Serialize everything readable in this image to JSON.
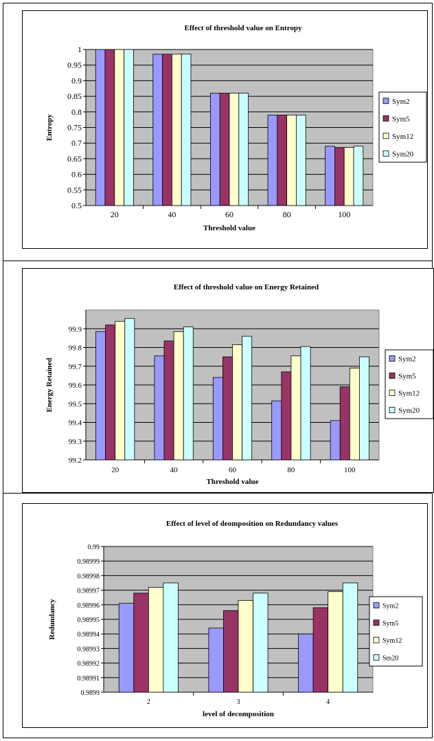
{
  "chart_data": [
    {
      "type": "bar",
      "title": "Effect of threshold value on Entropy",
      "xlabel": "Threshold value",
      "ylabel": "Entropy",
      "categories": [
        "20",
        "40",
        "60",
        "80",
        "100"
      ],
      "ylim": [
        0.5,
        1
      ],
      "yticks": [
        "0.5",
        "0.55",
        "0.6",
        "0.65",
        "0.7",
        "0.75",
        "0.8",
        "0.85",
        "0.9",
        "0.95",
        "1"
      ],
      "grid": true,
      "legend": "right",
      "series": [
        {
          "name": "Sym2",
          "color": "#9999ff",
          "values": [
            1,
            0.985,
            0.86,
            0.79,
            0.69
          ]
        },
        {
          "name": "Sym5",
          "color": "#993366",
          "values": [
            1,
            0.985,
            0.86,
            0.79,
            0.686
          ]
        },
        {
          "name": "Sym12",
          "color": "#ffffcc",
          "values": [
            1,
            0.985,
            0.86,
            0.79,
            0.686
          ]
        },
        {
          "name": "Sym20",
          "color": "#ccffff",
          "values": [
            1,
            0.985,
            0.86,
            0.79,
            0.69
          ]
        }
      ]
    },
    {
      "type": "bar",
      "title": "Effect of threshold value on Energy Retained",
      "xlabel": "Threshold value",
      "ylabel": "Energy Retained",
      "categories": [
        "20",
        "40",
        "60",
        "80",
        "100"
      ],
      "ylim": [
        99.2,
        100
      ],
      "yticks": [
        "99.2",
        "99.3",
        "99.4",
        "99.5",
        "99.6",
        "99.7",
        "99.8",
        "99.9"
      ],
      "grid": true,
      "legend": "right",
      "series": [
        {
          "name": "Sym2",
          "color": "#9999ff",
          "values": [
            99.885,
            99.755,
            99.64,
            99.515,
            99.41
          ]
        },
        {
          "name": "Sym5",
          "color": "#993366",
          "values": [
            99.92,
            99.835,
            99.75,
            99.67,
            99.59
          ]
        },
        {
          "name": "Sym12",
          "color": "#ffffcc",
          "values": [
            99.94,
            99.885,
            99.815,
            99.755,
            99.69
          ]
        },
        {
          "name": "Sym20",
          "color": "#ccffff",
          "values": [
            99.955,
            99.91,
            99.86,
            99.805,
            99.75
          ]
        }
      ]
    },
    {
      "type": "bar",
      "title": "Effect of level of deomposition on Redundancy values",
      "xlabel": "level of decomposition",
      "ylabel": "Redundancy",
      "categories": [
        "2",
        "3",
        "4"
      ],
      "ylim": [
        0.9899,
        0.99
      ],
      "yticks": [
        "0.9899",
        "0.98991",
        "0.98992",
        "0.98993",
        "0.98994",
        "0.98995",
        "0.98996",
        "0.98997",
        "0.98998",
        "0.98999",
        "0.99"
      ],
      "grid": true,
      "legend": "right",
      "series": [
        {
          "name": "Sym2",
          "color": "#9999ff",
          "values": [
            0.989961,
            0.989944,
            0.98994
          ]
        },
        {
          "name": "Sym5",
          "color": "#993366",
          "values": [
            0.989968,
            0.989956,
            0.989958
          ]
        },
        {
          "name": "Sym12",
          "color": "#ffffcc",
          "values": [
            0.989972,
            0.989963,
            0.989969
          ]
        },
        {
          "name": "Sm20",
          "color": "#ccffff",
          "values": [
            0.989975,
            0.989968,
            0.989975
          ]
        }
      ]
    }
  ]
}
